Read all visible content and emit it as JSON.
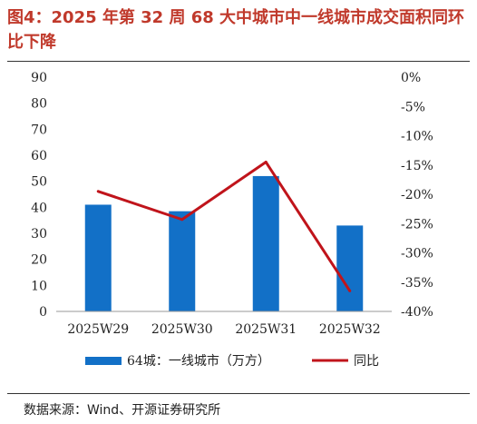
{
  "title": "图4：2025 年第 32 周 68 大中城市中一线城市成交面积同环比下降",
  "source": "数据来源：Wind、开源证券研究所",
  "colors": {
    "bar": "#1270c7",
    "line": "#c0141b",
    "title": "#c0392b"
  },
  "chart_data": {
    "type": "bar",
    "categories": [
      "2025W29",
      "2025W30",
      "2025W31",
      "2025W32"
    ],
    "series": [
      {
        "name": "64城：一线城市（万方）",
        "type": "bar",
        "axis": "left",
        "values": [
          41,
          38.5,
          52,
          33
        ]
      },
      {
        "name": "同比",
        "type": "line",
        "axis": "right",
        "values": [
          -19.5,
          -24.3,
          -14.5,
          -36.5
        ]
      }
    ],
    "y_left": {
      "ylim": [
        0,
        90
      ],
      "ticks": [
        "90",
        "80",
        "70",
        "60",
        "50",
        "40",
        "30",
        "20",
        "10",
        "0"
      ]
    },
    "y_right": {
      "ylim": [
        -40,
        0
      ],
      "ticks": [
        "0%",
        "-5%",
        "-10%",
        "-15%",
        "-20%",
        "-25%",
        "-30%",
        "-35%",
        "-40%"
      ]
    },
    "grid": false,
    "legend_position": "bottom"
  }
}
